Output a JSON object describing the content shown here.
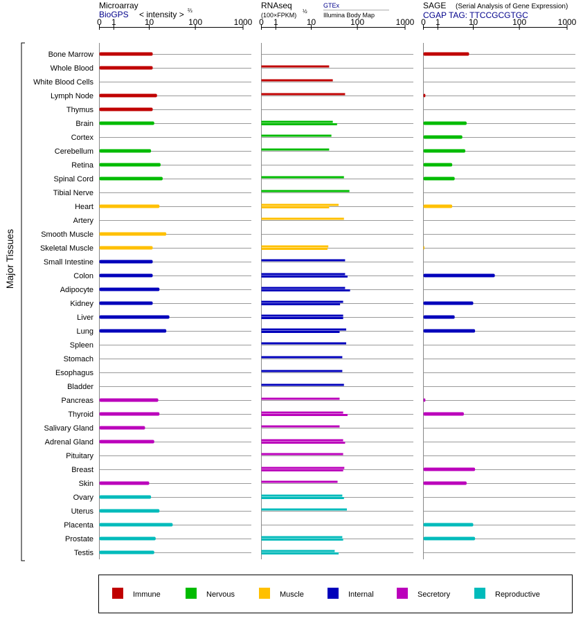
{
  "panels": {
    "microarray": {
      "title": "Microarray",
      "source": "BioGPS",
      "measure": "< intensity >",
      "measure_exp": "⅔",
      "ticks": [
        "0",
        "1",
        "10",
        "100",
        "1000"
      ]
    },
    "rnaseq": {
      "title": "RNAseq",
      "measure": "(100×FPKM)",
      "measure_exp": "½",
      "source": "GTEx",
      "source2": "Illumina Body Map",
      "ticks": [
        "0",
        "1",
        "10",
        "100",
        "1000"
      ]
    },
    "sage": {
      "title": "SAGE",
      "subtitle": "(Serial Analysis of Gene Expression)",
      "tag": "CGAP TAG: TTCCGCGTGC",
      "ticks": [
        "0",
        "1",
        "10",
        "100",
        "1000"
      ]
    }
  },
  "y_axis_label": "Major Tissues",
  "legend": [
    {
      "name": "Immune",
      "color": "#c00000"
    },
    {
      "name": "Nervous",
      "color": "#00bb00"
    },
    {
      "name": "Muscle",
      "color": "#ffc000"
    },
    {
      "name": "Internal",
      "color": "#0000bb"
    },
    {
      "name": "Secretory",
      "color": "#bb00bb"
    },
    {
      "name": "Reproductive",
      "color": "#00bbbb"
    }
  ],
  "chart_data": [
    {
      "type": "bar",
      "name": "Microarray",
      "scale": "log",
      "xlim": [
        0,
        1000
      ],
      "categories": [
        "Bone Marrow",
        "Whole Blood",
        "White Blood Cells",
        "Lymph Node",
        "Thymus",
        "Brain",
        "Cortex",
        "Cerebellum",
        "Retina",
        "Spinal Cord",
        "Tibial Nerve",
        "Heart",
        "Artery",
        "Smooth Muscle",
        "Skeletal Muscle",
        "Small Intestine",
        "Colon",
        "Adipocyte",
        "Kidney",
        "Liver",
        "Lung",
        "Spleen",
        "Stomach",
        "Esophagus",
        "Bladder",
        "Pancreas",
        "Thyroid",
        "Salivary Gland",
        "Adrenal Gland",
        "Pituitary",
        "Breast",
        "Skin",
        "Ovary",
        "Uterus",
        "Placenta",
        "Prostate",
        "Testis"
      ],
      "groups": [
        "Immune",
        "Immune",
        "Immune",
        "Immune",
        "Immune",
        "Nervous",
        "Nervous",
        "Nervous",
        "Nervous",
        "Nervous",
        "Nervous",
        "Muscle",
        "Muscle",
        "Muscle",
        "Muscle",
        "Internal",
        "Internal",
        "Internal",
        "Internal",
        "Internal",
        "Internal",
        "Internal",
        "Internal",
        "Internal",
        "Internal",
        "Secretory",
        "Secretory",
        "Secretory",
        "Secretory",
        "Secretory",
        "Secretory",
        "Secretory",
        "Reproductive",
        "Reproductive",
        "Reproductive",
        "Reproductive",
        "Reproductive"
      ],
      "values": [
        [
          12
        ],
        [
          12
        ],
        [],
        [
          15
        ],
        [
          12
        ],
        [
          13
        ],
        [],
        [
          11
        ],
        [
          18
        ],
        [
          20
        ],
        [],
        [
          17
        ],
        [],
        [
          24
        ],
        [
          12
        ],
        [
          12
        ],
        [
          12
        ],
        [
          17
        ],
        [
          12
        ],
        [
          28
        ],
        [
          24
        ],
        [],
        [],
        [],
        [],
        [
          16
        ],
        [
          17
        ],
        [
          8
        ],
        [
          13
        ],
        [],
        [],
        [
          10
        ],
        [
          11
        ],
        [
          17
        ],
        [
          33
        ],
        [
          14
        ],
        [
          13
        ]
      ]
    },
    {
      "type": "bar",
      "name": "RNAseq",
      "scale": "log",
      "xlim": [
        0,
        1000
      ],
      "categories": [
        "Bone Marrow",
        "Whole Blood",
        "White Blood Cells",
        "Lymph Node",
        "Thymus",
        "Brain",
        "Cortex",
        "Cerebellum",
        "Retina",
        "Spinal Cord",
        "Tibial Nerve",
        "Heart",
        "Artery",
        "Smooth Muscle",
        "Skeletal Muscle",
        "Small Intestine",
        "Colon",
        "Adipocyte",
        "Kidney",
        "Liver",
        "Lung",
        "Spleen",
        "Stomach",
        "Esophagus",
        "Bladder",
        "Pancreas",
        "Thyroid",
        "Salivary Gland",
        "Adrenal Gland",
        "Pituitary",
        "Breast",
        "Skin",
        "Ovary",
        "Uterus",
        "Placenta",
        "Prostate",
        "Testis"
      ],
      "values": [
        [],
        [
          25
        ],
        [
          30
        ],
        [
          55
        ],
        [],
        [
          30,
          37
        ],
        [
          28
        ],
        [
          25
        ],
        [],
        [
          52
        ],
        [
          68
        ],
        [
          40,
          25
        ],
        [
          52
        ],
        [],
        [
          24,
          23
        ],
        [
          55
        ],
        [
          55,
          62
        ],
        [
          55,
          70
        ],
        [
          50,
          43
        ],
        [
          50,
          50
        ],
        [
          58,
          42
        ],
        [
          58
        ],
        [
          48
        ],
        [
          48
        ],
        [
          52
        ],
        [
          42
        ],
        [
          50,
          62
        ],
        [
          42
        ],
        [
          50,
          55
        ],
        [
          50
        ],
        [
          53,
          50
        ],
        [
          38
        ],
        [
          48,
          52
        ],
        [
          60
        ],
        [],
        [
          48,
          50
        ],
        [
          33,
          40
        ]
      ]
    },
    {
      "type": "bar",
      "name": "SAGE",
      "scale": "log",
      "xlim": [
        0,
        1000
      ],
      "categories": [
        "Bone Marrow",
        "Whole Blood",
        "White Blood Cells",
        "Lymph Node",
        "Thymus",
        "Brain",
        "Cortex",
        "Cerebellum",
        "Retina",
        "Spinal Cord",
        "Tibial Nerve",
        "Heart",
        "Artery",
        "Smooth Muscle",
        "Skeletal Muscle",
        "Small Intestine",
        "Colon",
        "Adipocyte",
        "Kidney",
        "Liver",
        "Lung",
        "Spleen",
        "Stomach",
        "Esophagus",
        "Bladder",
        "Pancreas",
        "Thyroid",
        "Salivary Gland",
        "Adrenal Gland",
        "Pituitary",
        "Breast",
        "Skin",
        "Ovary",
        "Uterus",
        "Placenta",
        "Prostate",
        "Testis"
      ],
      "values": [
        [
          8
        ],
        [],
        [],
        [
          0.1
        ],
        [],
        [
          7
        ],
        [
          5.5
        ],
        [
          6.5
        ],
        [
          3
        ],
        [
          3.5
        ],
        [],
        [
          3
        ],
        [],
        [],
        [
          0.05
        ],
        [],
        [
          30
        ],
        [],
        [
          10
        ],
        [
          3.5
        ],
        [
          11
        ],
        [],
        [],
        [],
        [],
        [
          0.1
        ],
        [
          6
        ],
        [],
        [],
        [],
        [
          11
        ],
        [
          7
        ],
        [],
        [],
        [
          10
        ],
        [
          11
        ],
        []
      ]
    }
  ]
}
